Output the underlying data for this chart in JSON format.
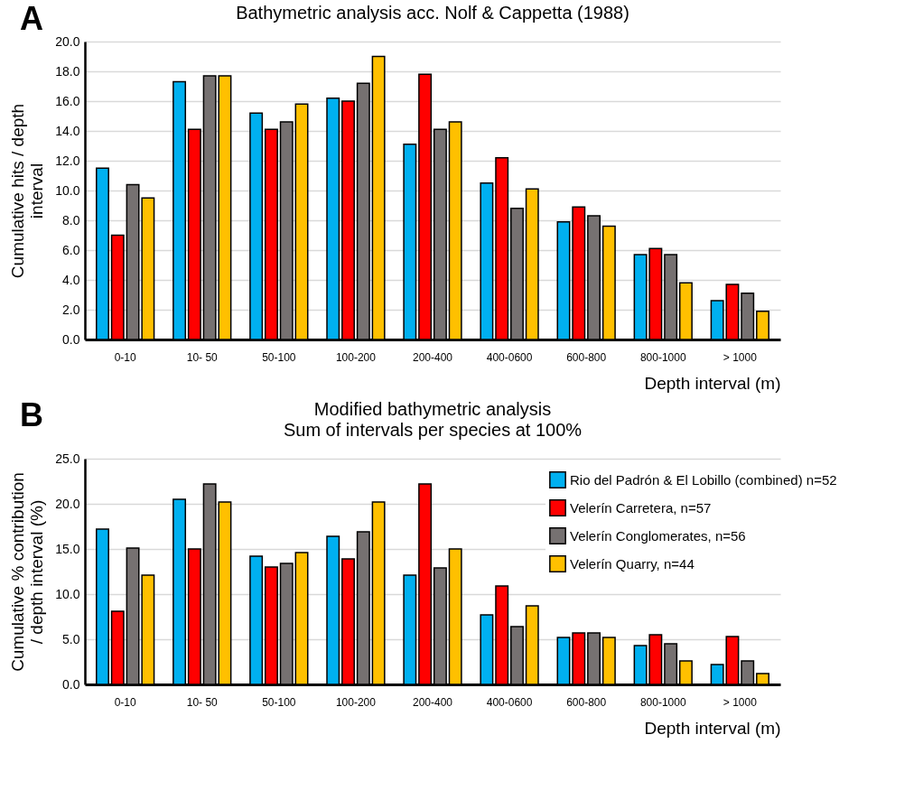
{
  "chart_data": [
    {
      "type": "bar",
      "annotations": [
        "A"
      ],
      "title": "Bathymetric analysis acc. Nolf & Cappetta (1988)",
      "xlabel": "Depth interval (m)",
      "ylabel": "Cumulative hits / depth interval",
      "categories": [
        "0-10",
        "10- 50",
        "50-100",
        "100-200",
        "200-400",
        "400-0600",
        "600-800",
        "800-1000",
        "> 1000"
      ],
      "series": [
        {
          "color": "#00b0f0",
          "values": [
            11.5,
            17.3,
            15.2,
            16.2,
            13.1,
            10.5,
            7.9,
            5.7,
            2.6
          ]
        },
        {
          "color": "#ff0000",
          "values": [
            7.0,
            14.1,
            14.1,
            16.0,
            17.8,
            12.2,
            8.9,
            6.1,
            3.7
          ]
        },
        {
          "color": "#767171",
          "values": [
            10.4,
            17.7,
            14.6,
            17.2,
            14.1,
            8.8,
            8.3,
            5.7,
            3.1
          ]
        },
        {
          "color": "#ffc000",
          "values": [
            9.5,
            17.7,
            15.8,
            19.0,
            14.6,
            10.1,
            7.6,
            3.8,
            1.9
          ]
        }
      ],
      "ylim": [
        0,
        20
      ],
      "yticks": [
        {
          "value": 0,
          "label": "0.0"
        },
        {
          "value": 2,
          "label": "2.0"
        },
        {
          "value": 4,
          "label": "4.0"
        },
        {
          "value": 6,
          "label": "6.0"
        },
        {
          "value": 8,
          "label": "8.0"
        },
        {
          "value": 10,
          "label": "10.0"
        },
        {
          "value": 12,
          "label": "12.0"
        },
        {
          "value": 14,
          "label": "14.0"
        },
        {
          "value": 16,
          "label": "16.0"
        },
        {
          "value": 18,
          "label": "18.0"
        },
        {
          "value": 20,
          "label": "20.0"
        }
      ],
      "grid": "y",
      "legend": false
    },
    {
      "type": "bar",
      "annotations": [
        "B"
      ],
      "title": "Modified bathymetric analysis",
      "subtitle": "Sum of intervals per species at 100%",
      "xlabel": "Depth interval (m)",
      "ylabel": "Cumulative % contribution / depth interval (%)",
      "categories": [
        "0-10",
        "10- 50",
        "50-100",
        "100-200",
        "200-400",
        "400-0600",
        "600-800",
        "800-1000",
        "> 1000"
      ],
      "series": [
        {
          "name": "Rio del Padrón & El Lobillo (combined) n=52",
          "color": "#00b0f0",
          "values": [
            17.2,
            20.5,
            14.2,
            16.4,
            12.1,
            7.7,
            5.2,
            4.3,
            2.2
          ]
        },
        {
          "name": "Velerín Carretera, n=57",
          "color": "#ff0000",
          "values": [
            8.1,
            15.0,
            13.0,
            13.9,
            22.2,
            10.9,
            5.7,
            5.5,
            5.3
          ]
        },
        {
          "name": "Velerín Conglomerates, n=56",
          "color": "#767171",
          "values": [
            15.1,
            22.2,
            13.4,
            16.9,
            12.9,
            6.4,
            5.7,
            4.5,
            2.6
          ]
        },
        {
          "name": "Velerín Quarry, n=44",
          "color": "#ffc000",
          "values": [
            12.1,
            20.2,
            14.6,
            20.2,
            15.0,
            8.7,
            5.2,
            2.6,
            1.2
          ]
        }
      ],
      "ylim": [
        0,
        25
      ],
      "yticks": [
        {
          "value": 0,
          "label": "0.0"
        },
        {
          "value": 5,
          "label": "5.0"
        },
        {
          "value": 10,
          "label": "10.0"
        },
        {
          "value": 15,
          "label": "15.0"
        },
        {
          "value": 20,
          "label": "20.0"
        },
        {
          "value": 25,
          "label": "25.0"
        }
      ],
      "grid": "y",
      "legend": "top right"
    }
  ]
}
